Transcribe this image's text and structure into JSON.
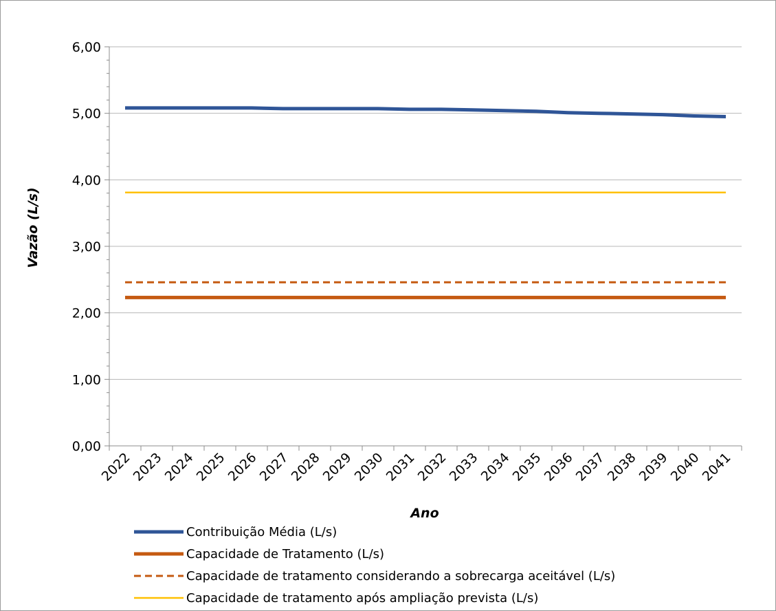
{
  "chart_data": {
    "type": "line",
    "title": "",
    "xlabel": "Ano",
    "ylabel": "Vazão (L/s)",
    "ylim": [
      0,
      6
    ],
    "y_major_step": 1,
    "y_minor_step": 0.2,
    "y_tick_labels": [
      "0,00",
      "1,00",
      "2,00",
      "3,00",
      "4,00",
      "5,00",
      "6,00"
    ],
    "grid": true,
    "legend_position": "bottom",
    "categories": [
      "2022",
      "2023",
      "2024",
      "2025",
      "2026",
      "2027",
      "2028",
      "2029",
      "2030",
      "2031",
      "2032",
      "2033",
      "2034",
      "2035",
      "2036",
      "2037",
      "2038",
      "2039",
      "2040",
      "2041"
    ],
    "series": [
      {
        "name": "Contribuição Média (L/s)",
        "color": "#2f5597",
        "style": "solid",
        "width": "thick",
        "values": [
          5.08,
          5.08,
          5.08,
          5.08,
          5.08,
          5.07,
          5.07,
          5.07,
          5.07,
          5.06,
          5.06,
          5.05,
          5.04,
          5.03,
          5.01,
          5.0,
          4.99,
          4.98,
          4.96,
          4.95
        ]
      },
      {
        "name": "Capacidade de Tratamento (L/s)",
        "color": "#c55a11",
        "style": "solid",
        "width": "thick",
        "values": [
          2.23,
          2.23,
          2.23,
          2.23,
          2.23,
          2.23,
          2.23,
          2.23,
          2.23,
          2.23,
          2.23,
          2.23,
          2.23,
          2.23,
          2.23,
          2.23,
          2.23,
          2.23,
          2.23,
          2.23
        ]
      },
      {
        "name": "Capacidade de tratamento considerando a sobrecarga aceitável (L/s)",
        "color": "#c55a11",
        "style": "dashed",
        "width": "medium",
        "values": [
          2.46,
          2.46,
          2.46,
          2.46,
          2.46,
          2.46,
          2.46,
          2.46,
          2.46,
          2.46,
          2.46,
          2.46,
          2.46,
          2.46,
          2.46,
          2.46,
          2.46,
          2.46,
          2.46,
          2.46
        ]
      },
      {
        "name": "Capacidade de tratamento após ampliação prevista (L/s)",
        "color": "#ffc000",
        "style": "solid",
        "width": "thin",
        "values": [
          3.81,
          3.81,
          3.81,
          3.81,
          3.81,
          3.81,
          3.81,
          3.81,
          3.81,
          3.81,
          3.81,
          3.81,
          3.81,
          3.81,
          3.81,
          3.81,
          3.81,
          3.81,
          3.81,
          3.81
        ]
      }
    ]
  }
}
